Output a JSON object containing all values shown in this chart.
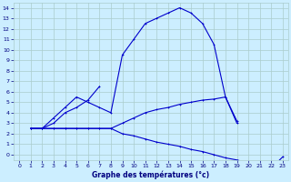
{
  "title": "Graphe des températures (°c)",
  "bg_color": "#cceeff",
  "grid_color": "#aacccc",
  "line_color": "#0000cc",
  "figsize": [
    3.2,
    2.0
  ],
  "dpi": 100,
  "xlim": [
    -0.5,
    23.5
  ],
  "ylim": [
    -0.5,
    14.5
  ],
  "line1_x": [
    1,
    2,
    3,
    4,
    5,
    6,
    7,
    8,
    9,
    10,
    11,
    12,
    13,
    14,
    15,
    16,
    17,
    18,
    19,
    20,
    21,
    22,
    23
  ],
  "line1_y": [
    2.5,
    2.5,
    3.5,
    4.5,
    5.5,
    5.0,
    4.5,
    4.0,
    9.5,
    11.0,
    12.5,
    13.0,
    13.5,
    14.0,
    13.5,
    12.5,
    10.5,
    5.5,
    3.0,
    null,
    null,
    null,
    null
  ],
  "line2_x": [
    1,
    2,
    3,
    4,
    5,
    6,
    7,
    8,
    9,
    10,
    11,
    12,
    13,
    14,
    15,
    16,
    17,
    18,
    19,
    20,
    21,
    22,
    23
  ],
  "line2_y": [
    2.5,
    2.5,
    3.0,
    4.0,
    4.5,
    5.2,
    6.5,
    null,
    null,
    null,
    null,
    null,
    null,
    null,
    null,
    null,
    null,
    null,
    null,
    null,
    null,
    null,
    null
  ],
  "line3_x": [
    1,
    2,
    3,
    4,
    5,
    6,
    7,
    8,
    9,
    10,
    11,
    12,
    13,
    14,
    15,
    16,
    17,
    18,
    19,
    20,
    21,
    22,
    23
  ],
  "line3_y": [
    2.5,
    2.5,
    2.5,
    2.5,
    2.5,
    2.5,
    2.5,
    2.5,
    3.0,
    3.5,
    4.0,
    4.3,
    4.5,
    4.8,
    5.0,
    5.2,
    5.3,
    5.5,
    3.2,
    null,
    null,
    null,
    null
  ],
  "line4_x": [
    1,
    2,
    3,
    4,
    5,
    6,
    7,
    8,
    9,
    10,
    11,
    12,
    13,
    14,
    15,
    16,
    17,
    18,
    19,
    20,
    21,
    22,
    23
  ],
  "line4_y": [
    2.5,
    2.5,
    2.5,
    2.5,
    2.5,
    2.5,
    2.5,
    2.5,
    2.0,
    1.8,
    1.5,
    1.2,
    1.0,
    0.8,
    0.5,
    0.3,
    0.0,
    -0.3,
    -0.5,
    -0.8,
    -1.0,
    -1.3,
    -0.2
  ]
}
